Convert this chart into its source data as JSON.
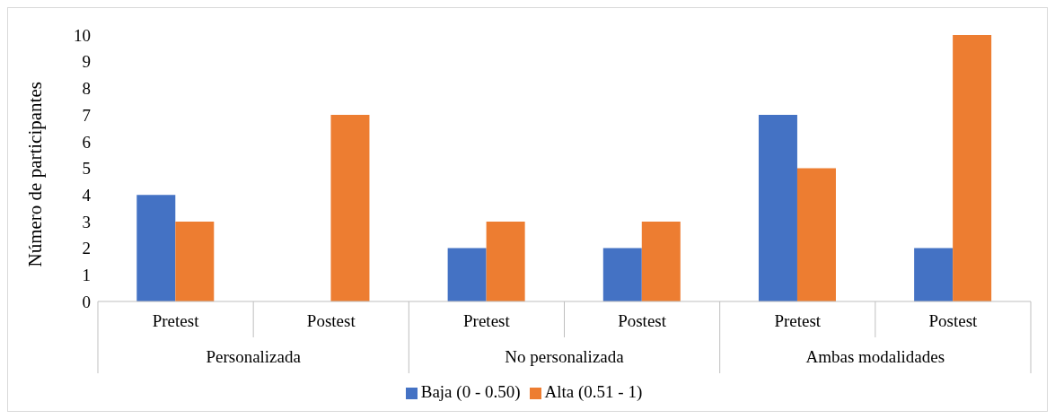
{
  "chart_data": {
    "type": "bar",
    "ylabel": "Número de participantes",
    "categories": [
      "Pretest",
      "Postest",
      "Pretest",
      "Postest",
      "Pretest",
      "Postest"
    ],
    "annotations": [
      "Personalizada",
      "No personalizada",
      "Ambas modalidades"
    ],
    "series": [
      {
        "name": "Baja (0 - 0.50)",
        "color": "#4472c4",
        "values": [
          4,
          0,
          2,
          2,
          7,
          2
        ]
      },
      {
        "name": "Alta (0.51 - 1)",
        "color": "#ed7d31",
        "values": [
          3,
          7,
          3,
          3,
          5,
          10
        ]
      }
    ],
    "ylim": [
      0,
      10
    ],
    "yticks": [
      0,
      1,
      2,
      3,
      4,
      5,
      6,
      7,
      8,
      9,
      10
    ],
    "legend": "bottom"
  }
}
